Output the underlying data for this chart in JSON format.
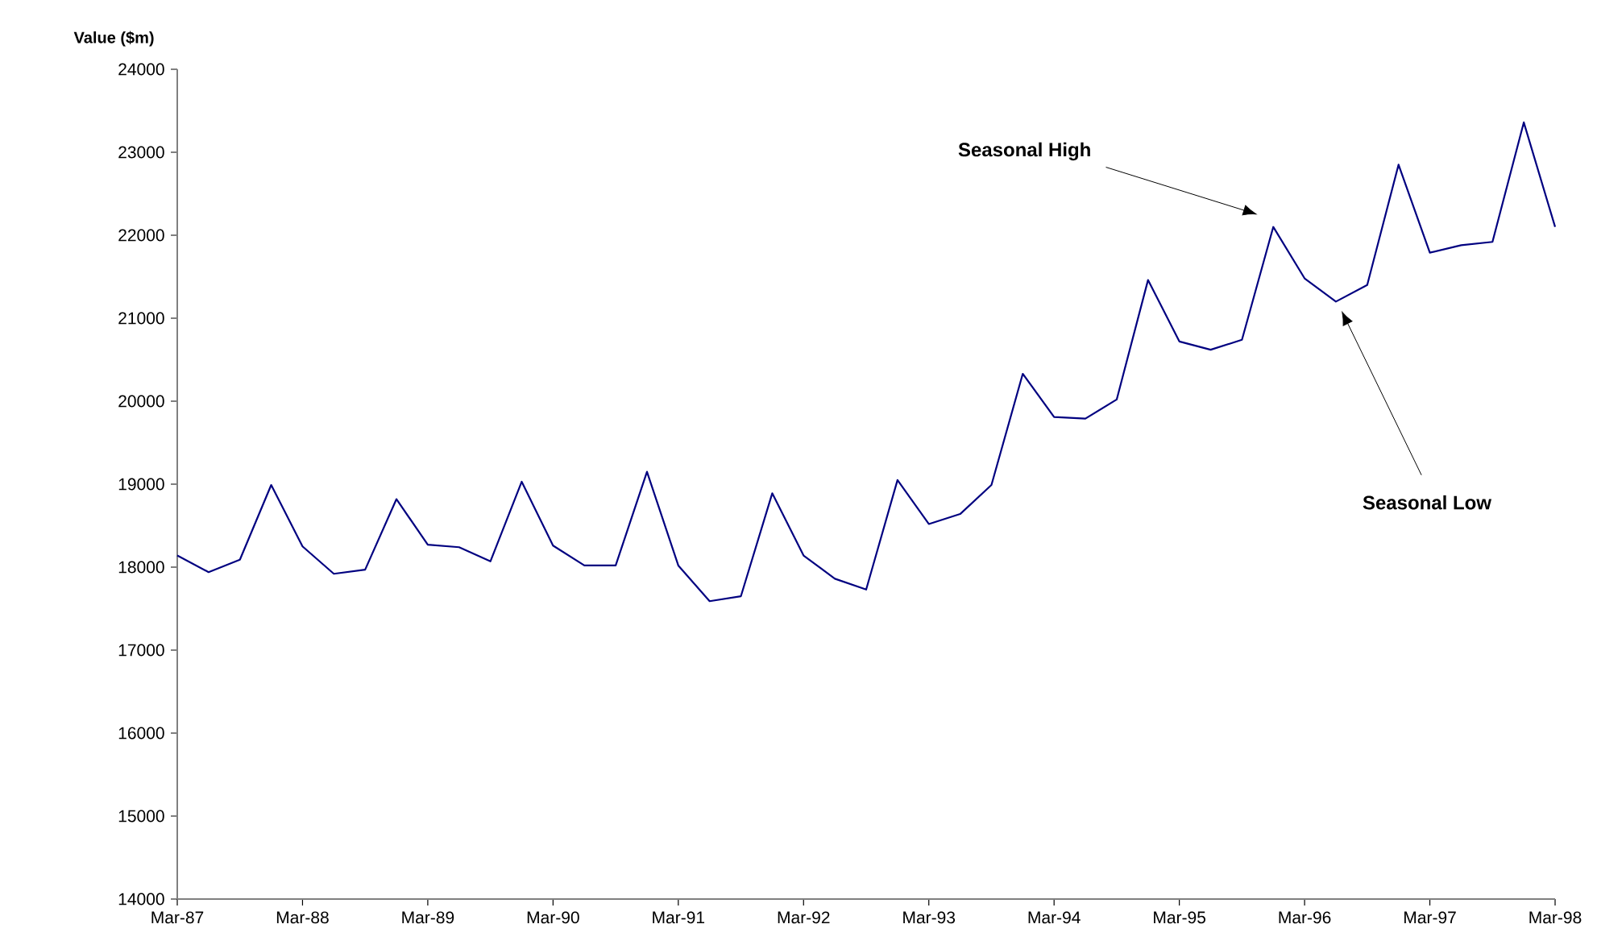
{
  "chart_data": {
    "type": "line",
    "ylabel": "Value ($m)",
    "x": [
      "1987-03",
      "1987-06",
      "1987-09",
      "1987-12",
      "1988-03",
      "1988-06",
      "1988-09",
      "1988-12",
      "1989-03",
      "1989-06",
      "1989-09",
      "1989-12",
      "1990-03",
      "1990-06",
      "1990-09",
      "1990-12",
      "1991-03",
      "1991-06",
      "1991-09",
      "1991-12",
      "1992-03",
      "1992-06",
      "1992-09",
      "1992-12",
      "1993-03",
      "1993-06",
      "1993-09",
      "1993-12",
      "1994-03",
      "1994-06",
      "1994-09",
      "1994-12",
      "1995-03",
      "1995-06",
      "1995-09",
      "1995-12",
      "1996-03",
      "1996-06",
      "1996-09",
      "1996-12",
      "1997-03",
      "1997-06",
      "1997-09",
      "1997-12",
      "1998-03"
    ],
    "series": [
      {
        "color": "#000080",
        "values": [
          18140,
          17940,
          18090,
          18990,
          18250,
          17920,
          17970,
          18820,
          18270,
          18240,
          18070,
          19030,
          18260,
          18020,
          18020,
          19150,
          18020,
          17590,
          17650,
          18890,
          18140,
          17860,
          17730,
          19050,
          18520,
          18640,
          18990,
          20330,
          19810,
          19790,
          20020,
          21460,
          20720,
          20620,
          20740,
          22100,
          21480,
          21200,
          21400,
          22850,
          21790,
          21880,
          21920,
          23360,
          22100
        ]
      }
    ],
    "xlim": [
      "1987-03",
      "1998-03"
    ],
    "xticks": [
      {
        "value": "1987-03",
        "label": "Mar-87"
      },
      {
        "value": "1988-03",
        "label": "Mar-88"
      },
      {
        "value": "1989-03",
        "label": "Mar-89"
      },
      {
        "value": "1990-03",
        "label": "Mar-90"
      },
      {
        "value": "1991-03",
        "label": "Mar-91"
      },
      {
        "value": "1992-03",
        "label": "Mar-92"
      },
      {
        "value": "1993-03",
        "label": "Mar-93"
      },
      {
        "value": "1994-03",
        "label": "Mar-94"
      },
      {
        "value": "1995-03",
        "label": "Mar-95"
      },
      {
        "value": "1996-03",
        "label": "Mar-96"
      },
      {
        "value": "1997-03",
        "label": "Mar-97"
      },
      {
        "value": "1998-03",
        "label": "Mar-98"
      }
    ],
    "ylim": [
      14000,
      24000
    ],
    "yticks": [
      14000,
      15000,
      16000,
      17000,
      18000,
      19000,
      20000,
      21000,
      22000,
      23000,
      24000
    ],
    "annotations": [
      "Seasonal High",
      "Seasonal Low"
    ],
    "grid": false,
    "legend": false,
    "marker": "none",
    "line_style": "solid"
  }
}
